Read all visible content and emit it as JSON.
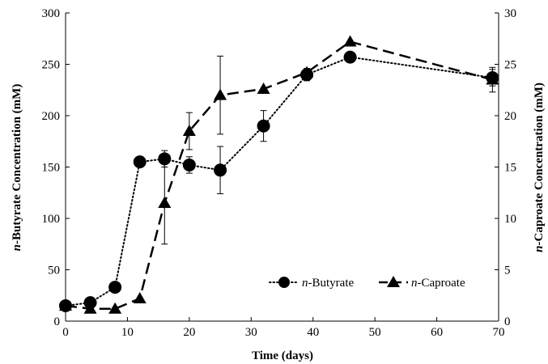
{
  "chart_data": {
    "type": "line",
    "title": "",
    "xlabel": "Time (days)",
    "ylabel_left": {
      "italic": "n",
      "rest": "-Butyrate Concentration (mM)"
    },
    "ylabel_right": {
      "italic": "n",
      "rest": "-Caproate Concentration (mM)"
    },
    "xlim": [
      0,
      70
    ],
    "ylim_left": [
      0,
      300
    ],
    "ylim_right": [
      0,
      30
    ],
    "x_ticks": [
      0,
      10,
      20,
      30,
      40,
      50,
      60,
      70
    ],
    "y_ticks_left": [
      0,
      50,
      100,
      150,
      200,
      250,
      300
    ],
    "y_ticks_right": [
      0,
      5,
      10,
      15,
      20,
      25,
      30
    ],
    "grid": false,
    "legend_position": "bottom-right",
    "series": [
      {
        "name": {
          "italic": "n",
          "rest": "-Butyrate"
        },
        "axis": "left",
        "marker": "circle",
        "line_style": "dotted",
        "x": [
          0,
          4,
          8,
          12,
          16,
          20,
          25,
          32,
          39,
          46,
          69
        ],
        "y": [
          15,
          18,
          33,
          155,
          158,
          152,
          147,
          190,
          240,
          257,
          237
        ],
        "err": [
          0,
          0,
          4,
          5,
          8,
          8,
          23,
          15,
          6,
          5,
          8
        ]
      },
      {
        "name": {
          "italic": "n",
          "rest": "-Caproate"
        },
        "axis": "right",
        "marker": "triangle",
        "line_style": "dashed",
        "x": [
          0,
          4,
          8,
          12,
          16,
          20,
          25,
          32,
          39,
          46,
          69
        ],
        "y": [
          1.5,
          1.2,
          1.2,
          2.2,
          11.5,
          18.5,
          22.0,
          22.6,
          24.2,
          27.2,
          23.5
        ],
        "err": [
          0,
          0,
          0,
          0,
          4.0,
          1.8,
          3.8,
          0,
          0,
          0,
          1.2
        ]
      }
    ]
  }
}
